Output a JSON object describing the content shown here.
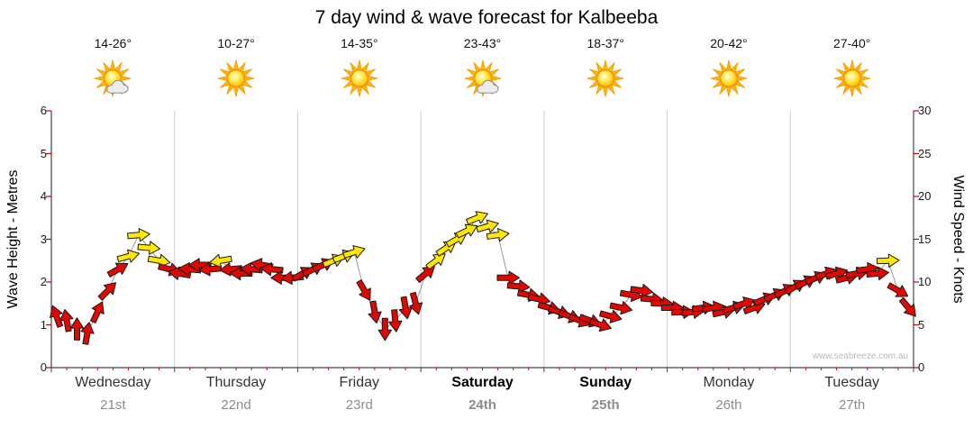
{
  "chart_data": {
    "type": "line",
    "title": "7 day wind & wave forecast for Kalbeeba",
    "watermark": "www.seabreeze.com.au",
    "y_left": {
      "label": "Wave Height - Metres",
      "ticks": [
        0,
        1,
        2,
        3,
        4,
        5,
        6
      ],
      "range": [
        0,
        6
      ]
    },
    "y_right": {
      "label": "Wind Speed - Knots",
      "ticks": [
        0,
        5,
        10,
        15,
        20,
        25,
        30
      ],
      "range": [
        0,
        30
      ]
    },
    "days": [
      {
        "name": "Wednesday",
        "date": "21st",
        "temp": "14-26°",
        "icon": "sun-cloud",
        "weekend": false
      },
      {
        "name": "Thursday",
        "date": "22nd",
        "temp": "10-27°",
        "icon": "sun",
        "weekend": false
      },
      {
        "name": "Friday",
        "date": "23rd",
        "temp": "14-35°",
        "icon": "sun",
        "weekend": false
      },
      {
        "name": "Saturday",
        "date": "24th",
        "temp": "23-43°",
        "icon": "sun-cloud",
        "weekend": true
      },
      {
        "name": "Sunday",
        "date": "25th",
        "temp": "18-37°",
        "icon": "sun",
        "weekend": true
      },
      {
        "name": "Monday",
        "date": "26th",
        "temp": "20-42°",
        "icon": "sun",
        "weekend": false
      },
      {
        "name": "Tuesday",
        "date": "27th",
        "temp": "27-40°",
        "icon": "sun",
        "weekend": false
      }
    ],
    "samples_per_day": 12,
    "series": [
      {
        "name": "Wind speed and direction (arrows)",
        "unit": "knots",
        "knots": [
          6,
          5.5,
          4.5,
          4,
          6.5,
          9,
          11.5,
          13,
          15.5,
          14,
          12.5,
          11.5,
          11,
          11.5,
          12,
          11.5,
          12.5,
          11.5,
          11,
          11.5,
          12,
          11.5,
          10.5,
          10.5,
          11,
          11.5,
          12,
          12.5,
          13,
          13.5,
          9,
          6.5,
          4.5,
          5.5,
          7,
          7.5,
          11,
          12.5,
          14,
          15,
          16,
          17.5,
          16.5,
          15.5,
          10.5,
          9.5,
          8.5,
          8,
          7,
          6.5,
          6,
          5.5,
          5.5,
          5,
          6,
          7,
          8.5,
          9,
          8,
          7.5,
          7,
          6.5,
          6.5,
          7,
          7,
          6.5,
          7,
          7.5,
          7,
          8,
          8.5,
          9,
          9.5,
          10,
          10.5,
          11,
          11,
          10.5,
          11,
          11.5,
          11,
          12.5,
          9,
          7
        ],
        "dir_deg": [
          250,
          260,
          270,
          280,
          295,
          315,
          330,
          345,
          355,
          5,
          10,
          15,
          190,
          185,
          180,
          175,
          170,
          175,
          180,
          185,
          190,
          185,
          180,
          175,
          330,
          332,
          335,
          338,
          340,
          342,
          60,
          80,
          90,
          85,
          80,
          75,
          320,
          323,
          326,
          330,
          334,
          338,
          344,
          352,
          0,
          5,
          10,
          12,
          15,
          18,
          20,
          22,
          20,
          18,
          15,
          12,
          10,
          8,
          5,
          2,
          0,
          358,
          355,
          352,
          350,
          348,
          345,
          342,
          340,
          338,
          335,
          332,
          330,
          333,
          336,
          340,
          343,
          346,
          349,
          352,
          355,
          358,
          30,
          50
        ]
      }
    ],
    "arrow_style": {
      "low_color": "#E00800",
      "high_color": "#FFE800",
      "outline": "#1A1A1A",
      "high_threshold_knots": 12.5
    },
    "line_color": "#999999",
    "axis_color": "#444444",
    "tick_color": "#CC0000",
    "grid_color": "#CCCCCC"
  }
}
